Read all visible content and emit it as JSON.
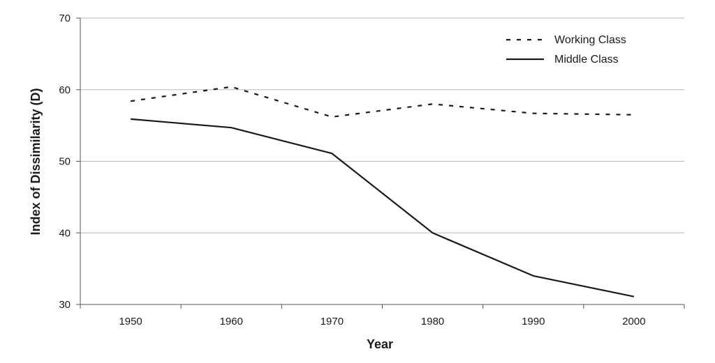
{
  "chart_data": {
    "type": "line",
    "title": "",
    "xlabel": "Year",
    "ylabel": "Index of Dissimilarity (D)",
    "x": [
      1950,
      1960,
      1970,
      1980,
      1990,
      2000
    ],
    "x_tick_labels": [
      "1950",
      "1960",
      "1970",
      "1980",
      "1990",
      "2000"
    ],
    "ylim": [
      30,
      70
    ],
    "y_ticks": [
      30,
      40,
      50,
      60,
      70
    ],
    "y_tick_labels": [
      "30",
      "40",
      "50",
      "60",
      "70"
    ],
    "grid": "horizontal",
    "legend_position": "top-right",
    "series": [
      {
        "name": "Working Class",
        "style": "dashed",
        "color": "#1a1a1a",
        "values": [
          58.4,
          60.4,
          56.2,
          58.0,
          56.7,
          56.5
        ]
      },
      {
        "name": "Middle Class",
        "style": "solid",
        "color": "#1a1a1a",
        "values": [
          55.9,
          54.7,
          51.1,
          40.0,
          34.0,
          31.1
        ]
      }
    ]
  }
}
